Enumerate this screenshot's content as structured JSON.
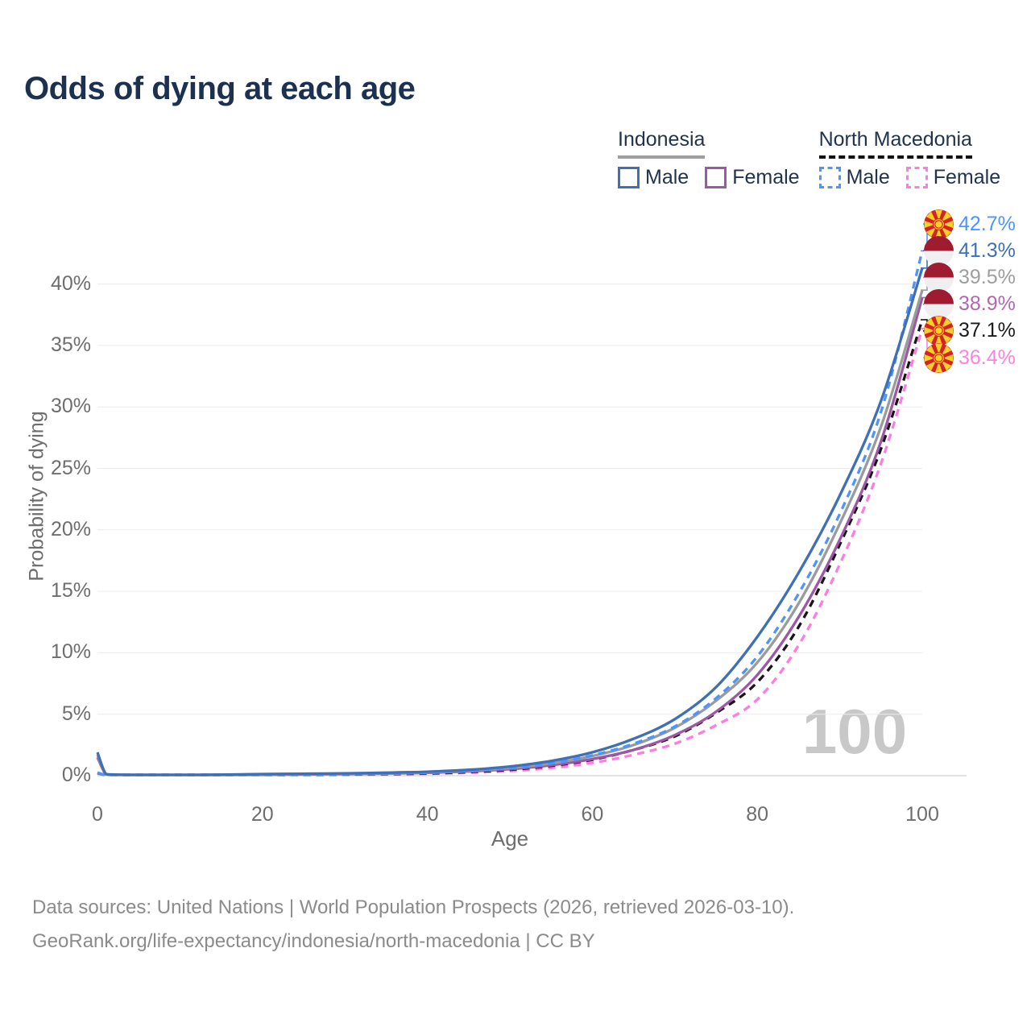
{
  "title": "Odds of dying at each age",
  "watermark_age": "100",
  "legend": {
    "groups": [
      {
        "title": "Indonesia",
        "underline": {
          "style": "solid",
          "color": "#9e9e9e"
        },
        "items": [
          {
            "label": "Male",
            "series": "indonesia_male"
          },
          {
            "label": "Female",
            "series": "indonesia_female"
          }
        ]
      },
      {
        "title": "North Macedonia",
        "underline": {
          "style": "dashed",
          "color": "#111111"
        },
        "items": [
          {
            "label": "Male",
            "series": "north_macedonia_male"
          },
          {
            "label": "Female",
            "series": "north_macedonia_female"
          }
        ]
      }
    ]
  },
  "chart_data": {
    "type": "line",
    "title": "Odds of dying at each age",
    "xlabel": "Age",
    "ylabel": "Probability of dying",
    "x_ticks": [
      0,
      20,
      40,
      60,
      80,
      100
    ],
    "y_ticks": [
      "0%",
      "5%",
      "10%",
      "15%",
      "20%",
      "25%",
      "30%",
      "35%",
      "40%"
    ],
    "y_tick_values": [
      0,
      5,
      10,
      15,
      20,
      25,
      30,
      35,
      40
    ],
    "xlim": [
      0,
      100
    ],
    "ylim": [
      0,
      45.4
    ],
    "grid": "horizontal",
    "legend_position": "top-right",
    "colors": {
      "grid": "#ececec",
      "zero_line": "#d9d9d9",
      "tick_text": "#6e6e6e",
      "title_text": "#1c3150",
      "legend_text": "#22334e",
      "footer_text": "#8b8b8b",
      "watermark": "#c8c8c8"
    },
    "series": [
      {
        "id": "north_macedonia_female",
        "name": "North Macedonia Female",
        "color": "#ff7ae1",
        "dash": true,
        "points": [
          [
            0,
            0.2
          ],
          [
            1,
            0.025
          ],
          [
            2,
            0.02
          ],
          [
            5,
            0.015
          ],
          [
            10,
            0.015
          ],
          [
            15,
            0.03
          ],
          [
            20,
            0.05
          ],
          [
            25,
            0.06
          ],
          [
            30,
            0.08
          ],
          [
            35,
            0.1
          ],
          [
            40,
            0.15
          ],
          [
            45,
            0.24
          ],
          [
            50,
            0.38
          ],
          [
            55,
            0.63
          ],
          [
            60,
            1.05
          ],
          [
            65,
            1.7
          ],
          [
            70,
            2.6
          ],
          [
            75,
            4.1
          ],
          [
            80,
            6.2
          ],
          [
            85,
            10.6
          ],
          [
            90,
            17.2
          ],
          [
            95,
            25.4
          ],
          [
            100,
            36.4
          ]
        ]
      },
      {
        "id": "north_macedonia_combined",
        "name": "North Macedonia",
        "color": "#161616",
        "dash": true,
        "points": [
          [
            0,
            0.22
          ],
          [
            1,
            0.028
          ],
          [
            2,
            0.022
          ],
          [
            5,
            0.018
          ],
          [
            10,
            0.018
          ],
          [
            15,
            0.04
          ],
          [
            20,
            0.06
          ],
          [
            25,
            0.08
          ],
          [
            30,
            0.1
          ],
          [
            35,
            0.13
          ],
          [
            40,
            0.19
          ],
          [
            45,
            0.3
          ],
          [
            50,
            0.48
          ],
          [
            55,
            0.8
          ],
          [
            60,
            1.3
          ],
          [
            65,
            2.1
          ],
          [
            70,
            3.2
          ],
          [
            75,
            5.1
          ],
          [
            80,
            7.6
          ],
          [
            85,
            12.1
          ],
          [
            90,
            18.8
          ],
          [
            95,
            26.6
          ],
          [
            100,
            37.1
          ]
        ]
      },
      {
        "id": "indonesia_female",
        "name": "Indonesia Female",
        "color": "#9c57a5",
        "dash": false,
        "points": [
          [
            0,
            1.5
          ],
          [
            1,
            0.12
          ],
          [
            2,
            0.07
          ],
          [
            5,
            0.05
          ],
          [
            10,
            0.04
          ],
          [
            15,
            0.05
          ],
          [
            20,
            0.08
          ],
          [
            25,
            0.1
          ],
          [
            30,
            0.13
          ],
          [
            35,
            0.17
          ],
          [
            40,
            0.23
          ],
          [
            45,
            0.35
          ],
          [
            50,
            0.53
          ],
          [
            55,
            0.85
          ],
          [
            60,
            1.35
          ],
          [
            65,
            2.1
          ],
          [
            70,
            3.3
          ],
          [
            75,
            5.2
          ],
          [
            80,
            8.2
          ],
          [
            85,
            12.9
          ],
          [
            90,
            19.2
          ],
          [
            95,
            27.2
          ],
          [
            100,
            38.9
          ]
        ]
      },
      {
        "id": "indonesia_combined",
        "name": "Indonesia",
        "color": "#9b9b9b",
        "dash": false,
        "points": [
          [
            0,
            1.7
          ],
          [
            1,
            0.14
          ],
          [
            2,
            0.08
          ],
          [
            5,
            0.055
          ],
          [
            10,
            0.045
          ],
          [
            15,
            0.07
          ],
          [
            20,
            0.11
          ],
          [
            25,
            0.13
          ],
          [
            30,
            0.16
          ],
          [
            35,
            0.2
          ],
          [
            40,
            0.27
          ],
          [
            45,
            0.41
          ],
          [
            50,
            0.63
          ],
          [
            55,
            1.0
          ],
          [
            60,
            1.6
          ],
          [
            65,
            2.5
          ],
          [
            70,
            3.9
          ],
          [
            75,
            6.1
          ],
          [
            80,
            9.2
          ],
          [
            85,
            14.0
          ],
          [
            90,
            20.5
          ],
          [
            95,
            28.4
          ],
          [
            100,
            39.5
          ]
        ]
      },
      {
        "id": "north_macedonia_male",
        "name": "North Macedonia Male",
        "color": "#4d94ff",
        "dash": true,
        "points": [
          [
            0,
            0.25
          ],
          [
            1,
            0.03
          ],
          [
            2,
            0.025
          ],
          [
            5,
            0.02
          ],
          [
            10,
            0.02
          ],
          [
            15,
            0.05
          ],
          [
            20,
            0.08
          ],
          [
            25,
            0.1
          ],
          [
            30,
            0.12
          ],
          [
            35,
            0.16
          ],
          [
            40,
            0.24
          ],
          [
            45,
            0.38
          ],
          [
            50,
            0.62
          ],
          [
            55,
            1.0
          ],
          [
            60,
            1.65
          ],
          [
            65,
            2.6
          ],
          [
            70,
            4.0
          ],
          [
            75,
            6.3
          ],
          [
            80,
            9.7
          ],
          [
            85,
            14.8
          ],
          [
            90,
            21.3
          ],
          [
            95,
            29.6
          ],
          [
            100,
            42.7
          ]
        ]
      },
      {
        "id": "indonesia_male",
        "name": "Indonesia Male",
        "color": "#3f6fb5",
        "dash": false,
        "points": [
          [
            0,
            1.9
          ],
          [
            1,
            0.15
          ],
          [
            2,
            0.09
          ],
          [
            5,
            0.06
          ],
          [
            10,
            0.05
          ],
          [
            15,
            0.08
          ],
          [
            20,
            0.13
          ],
          [
            25,
            0.16
          ],
          [
            30,
            0.19
          ],
          [
            35,
            0.24
          ],
          [
            40,
            0.32
          ],
          [
            45,
            0.48
          ],
          [
            50,
            0.75
          ],
          [
            55,
            1.2
          ],
          [
            60,
            1.9
          ],
          [
            65,
            3.0
          ],
          [
            70,
            4.6
          ],
          [
            75,
            7.2
          ],
          [
            80,
            11.3
          ],
          [
            85,
            16.5
          ],
          [
            90,
            22.8
          ],
          [
            95,
            30.5
          ],
          [
            100,
            41.3
          ]
        ]
      }
    ],
    "end_labels": [
      {
        "series": "north_macedonia_male",
        "label": "42.7%",
        "value": 42.7,
        "color": "#4d94ff",
        "flag": "north-macedonia"
      },
      {
        "series": "indonesia_male",
        "label": "41.3%",
        "value": 41.3,
        "color": "#3f6fb5",
        "flag": "indonesia"
      },
      {
        "series": "indonesia_combined",
        "label": "39.5%",
        "value": 39.5,
        "color": "#9e9e9e",
        "flag": "indonesia"
      },
      {
        "series": "indonesia_female",
        "label": "38.9%",
        "value": 38.9,
        "color": "#b069ae",
        "flag": "indonesia"
      },
      {
        "series": "north_macedonia_combined",
        "label": "37.1%",
        "value": 37.1,
        "color": "#1a1a1a",
        "flag": "north-macedonia"
      },
      {
        "series": "north_macedonia_female",
        "label": "36.4%",
        "value": 36.4,
        "color": "#ff82e0",
        "flag": "north-macedonia"
      }
    ]
  },
  "footer": {
    "line1": "Data sources: United Nations | World Population Prospects (2026, retrieved 2026-03-10).",
    "line2": "GeoRank.org/life-expectancy/indonesia/north-macedonia | CC BY"
  }
}
